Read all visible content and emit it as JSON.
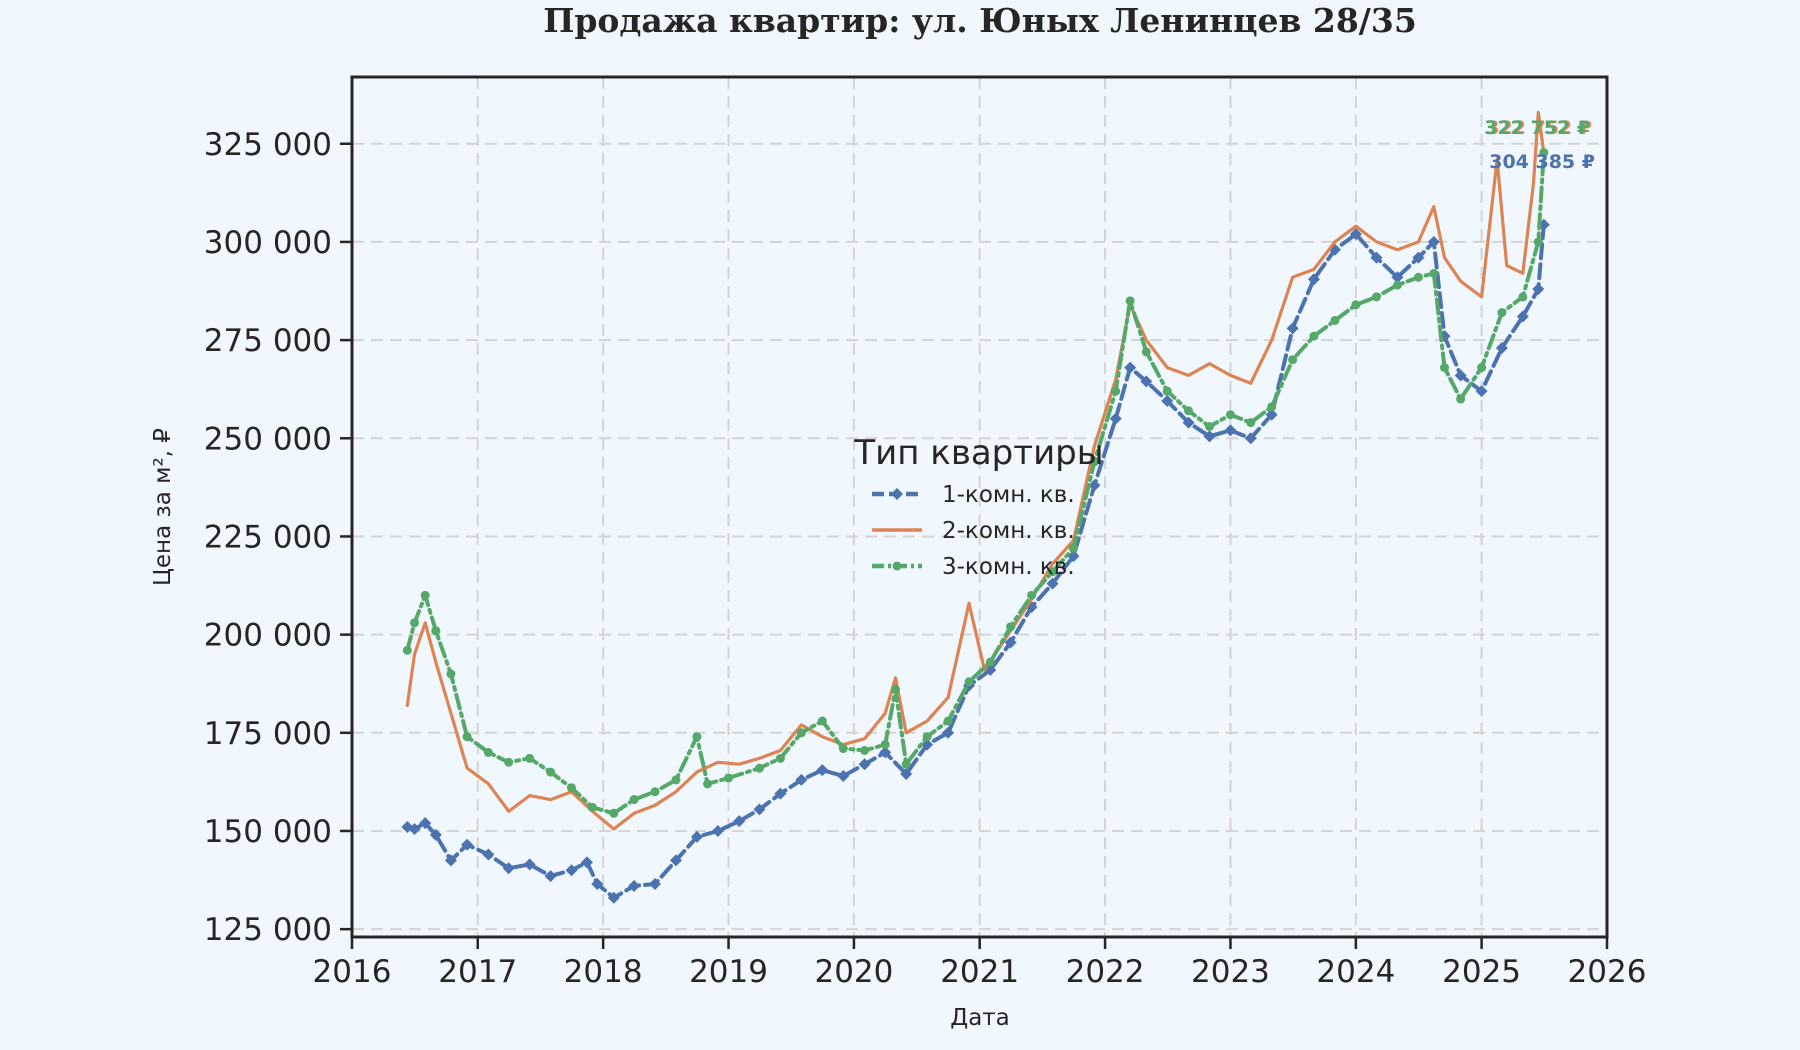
{
  "chart_data": {
    "type": "line",
    "title": "Продажа квартир: ул. Юных Ленинцев 28/35",
    "xlabel": "Дата",
    "ylabel": "Цена за м², ₽",
    "xlim": [
      "2016-01-01",
      "2026-01-01"
    ],
    "ylim": [
      123000,
      342000
    ],
    "x_ticks": [
      "2016",
      "2017",
      "2018",
      "2019",
      "2020",
      "2021",
      "2022",
      "2023",
      "2024",
      "2025",
      "2026"
    ],
    "y_ticks": [
      125000,
      150000,
      175000,
      200000,
      225000,
      250000,
      275000,
      300000,
      325000
    ],
    "y_tick_labels": [
      "125 000",
      "150 000",
      "175 000",
      "200 000",
      "225 000",
      "250 000",
      "275 000",
      "300 000",
      "325 000"
    ],
    "grid": true,
    "legend": {
      "title": "Тип квартиры",
      "placement": "center"
    },
    "series": [
      {
        "name": "1-комн. кв.",
        "color": "#4c72b0",
        "style": "dashed-diamond",
        "end_label": "304 385 ₽",
        "points": [
          [
            "2016-06-10",
            151000
          ],
          [
            "2016-07-01",
            150500
          ],
          [
            "2016-08-01",
            152000
          ],
          [
            "2016-09-01",
            149000
          ],
          [
            "2016-10-15",
            142500
          ],
          [
            "2016-12-01",
            146500
          ],
          [
            "2017-02-01",
            144000
          ],
          [
            "2017-04-01",
            140500
          ],
          [
            "2017-06-01",
            141500
          ],
          [
            "2017-08-01",
            138500
          ],
          [
            "2017-10-01",
            140000
          ],
          [
            "2017-11-15",
            142000
          ],
          [
            "2017-12-15",
            136500
          ],
          [
            "2018-02-01",
            133000
          ],
          [
            "2018-04-01",
            136000
          ],
          [
            "2018-06-01",
            136500
          ],
          [
            "2018-08-01",
            142500
          ],
          [
            "2018-10-01",
            148500
          ],
          [
            "2018-12-01",
            150000
          ],
          [
            "2019-02-01",
            152500
          ],
          [
            "2019-04-01",
            155500
          ],
          [
            "2019-06-01",
            159500
          ],
          [
            "2019-08-01",
            163000
          ],
          [
            "2019-10-01",
            165500
          ],
          [
            "2019-12-01",
            164000
          ],
          [
            "2020-02-01",
            167000
          ],
          [
            "2020-04-01",
            170000
          ],
          [
            "2020-06-01",
            164500
          ],
          [
            "2020-08-01",
            172000
          ],
          [
            "2020-10-01",
            175000
          ],
          [
            "2020-12-01",
            187000
          ],
          [
            "2021-02-01",
            191000
          ],
          [
            "2021-04-01",
            198000
          ],
          [
            "2021-06-01",
            207000
          ],
          [
            "2021-08-01",
            213000
          ],
          [
            "2021-10-01",
            220000
          ],
          [
            "2021-12-01",
            238000
          ],
          [
            "2022-02-01",
            255000
          ],
          [
            "2022-03-15",
            268000
          ],
          [
            "2022-05-01",
            264500
          ],
          [
            "2022-07-01",
            259500
          ],
          [
            "2022-09-01",
            254000
          ],
          [
            "2022-11-01",
            250500
          ],
          [
            "2023-01-01",
            252000
          ],
          [
            "2023-03-01",
            250000
          ],
          [
            "2023-05-01",
            256000
          ],
          [
            "2023-07-01",
            278000
          ],
          [
            "2023-09-01",
            290500
          ],
          [
            "2023-11-01",
            298000
          ],
          [
            "2024-01-01",
            302000
          ],
          [
            "2024-03-01",
            296000
          ],
          [
            "2024-05-01",
            291000
          ],
          [
            "2024-07-01",
            296000
          ],
          [
            "2024-08-15",
            300000
          ],
          [
            "2024-09-15",
            276000
          ],
          [
            "2024-11-01",
            266000
          ],
          [
            "2025-01-01",
            262000
          ],
          [
            "2025-03-01",
            273000
          ],
          [
            "2025-05-01",
            281000
          ],
          [
            "2025-06-15",
            288000
          ],
          [
            "2025-07-01",
            304385
          ]
        ]
      },
      {
        "name": "2-комн. кв.",
        "color": "#dd8452",
        "style": "solid",
        "end_label": "322 752 ₽",
        "points": [
          [
            "2016-06-10",
            182000
          ],
          [
            "2016-07-01",
            195000
          ],
          [
            "2016-08-01",
            203000
          ],
          [
            "2016-09-01",
            193000
          ],
          [
            "2016-10-15",
            180000
          ],
          [
            "2016-12-01",
            166000
          ],
          [
            "2017-02-01",
            162000
          ],
          [
            "2017-04-01",
            155000
          ],
          [
            "2017-06-01",
            159000
          ],
          [
            "2017-08-01",
            158000
          ],
          [
            "2017-10-01",
            160000
          ],
          [
            "2017-12-01",
            155000
          ],
          [
            "2018-02-01",
            150500
          ],
          [
            "2018-04-01",
            154500
          ],
          [
            "2018-06-01",
            156500
          ],
          [
            "2018-08-01",
            160000
          ],
          [
            "2018-10-01",
            165000
          ],
          [
            "2018-12-01",
            167500
          ],
          [
            "2019-02-01",
            167000
          ],
          [
            "2019-04-01",
            168500
          ],
          [
            "2019-06-01",
            170500
          ],
          [
            "2019-08-01",
            177000
          ],
          [
            "2019-10-01",
            174000
          ],
          [
            "2019-12-01",
            172000
          ],
          [
            "2020-02-01",
            173500
          ],
          [
            "2020-04-01",
            180000
          ],
          [
            "2020-05-01",
            189000
          ],
          [
            "2020-06-01",
            175000
          ],
          [
            "2020-08-01",
            178000
          ],
          [
            "2020-10-01",
            184000
          ],
          [
            "2020-12-01",
            208000
          ],
          [
            "2021-01-15",
            191000
          ],
          [
            "2021-04-01",
            201000
          ],
          [
            "2021-06-01",
            209000
          ],
          [
            "2021-08-01",
            218000
          ],
          [
            "2021-10-01",
            224000
          ],
          [
            "2021-12-01",
            248000
          ],
          [
            "2022-02-01",
            265000
          ],
          [
            "2022-03-15",
            284000
          ],
          [
            "2022-05-01",
            275000
          ],
          [
            "2022-07-01",
            268000
          ],
          [
            "2022-09-01",
            266000
          ],
          [
            "2022-11-01",
            269000
          ],
          [
            "2023-01-01",
            266000
          ],
          [
            "2023-03-01",
            264000
          ],
          [
            "2023-05-01",
            275000
          ],
          [
            "2023-07-01",
            291000
          ],
          [
            "2023-09-01",
            293000
          ],
          [
            "2023-11-01",
            300000
          ],
          [
            "2024-01-01",
            304000
          ],
          [
            "2024-03-01",
            300000
          ],
          [
            "2024-05-01",
            298000
          ],
          [
            "2024-07-01",
            300000
          ],
          [
            "2024-08-15",
            309000
          ],
          [
            "2024-09-15",
            296000
          ],
          [
            "2024-11-01",
            290000
          ],
          [
            "2025-01-01",
            286000
          ],
          [
            "2025-02-15",
            321000
          ],
          [
            "2025-03-15",
            294000
          ],
          [
            "2025-05-01",
            292000
          ],
          [
            "2025-06-01",
            315000
          ],
          [
            "2025-06-15",
            333000
          ],
          [
            "2025-07-01",
            322752
          ]
        ]
      },
      {
        "name": "3-комн. кв.",
        "color": "#55a868",
        "style": "dashdot-dot",
        "end_label": "322 752 ₽",
        "points": [
          [
            "2016-06-10",
            196000
          ],
          [
            "2016-07-01",
            203000
          ],
          [
            "2016-08-01",
            210000
          ],
          [
            "2016-09-01",
            201000
          ],
          [
            "2016-10-15",
            190000
          ],
          [
            "2016-12-01",
            174000
          ],
          [
            "2017-02-01",
            170000
          ],
          [
            "2017-04-01",
            167500
          ],
          [
            "2017-06-01",
            168500
          ],
          [
            "2017-08-01",
            165000
          ],
          [
            "2017-10-01",
            161000
          ],
          [
            "2017-12-01",
            156000
          ],
          [
            "2018-02-01",
            154500
          ],
          [
            "2018-04-01",
            158000
          ],
          [
            "2018-06-01",
            160000
          ],
          [
            "2018-08-01",
            163000
          ],
          [
            "2018-10-01",
            174000
          ],
          [
            "2018-11-01",
            162000
          ],
          [
            "2019-01-01",
            163500
          ],
          [
            "2019-04-01",
            166000
          ],
          [
            "2019-06-01",
            168500
          ],
          [
            "2019-08-01",
            175000
          ],
          [
            "2019-10-01",
            178000
          ],
          [
            "2019-12-01",
            171000
          ],
          [
            "2020-02-01",
            170500
          ],
          [
            "2020-04-01",
            172000
          ],
          [
            "2020-05-01",
            186000
          ],
          [
            "2020-06-01",
            167000
          ],
          [
            "2020-08-01",
            174000
          ],
          [
            "2020-10-01",
            178000
          ],
          [
            "2020-12-01",
            188000
          ],
          [
            "2021-02-01",
            193000
          ],
          [
            "2021-04-01",
            202000
          ],
          [
            "2021-06-01",
            210000
          ],
          [
            "2021-08-01",
            216000
          ],
          [
            "2021-10-01",
            222000
          ],
          [
            "2021-12-01",
            244000
          ],
          [
            "2022-02-01",
            262000
          ],
          [
            "2022-03-15",
            285000
          ],
          [
            "2022-05-01",
            272000
          ],
          [
            "2022-07-01",
            262000
          ],
          [
            "2022-09-01",
            257000
          ],
          [
            "2022-11-01",
            253000
          ],
          [
            "2023-01-01",
            256000
          ],
          [
            "2023-03-01",
            254000
          ],
          [
            "2023-05-01",
            258000
          ],
          [
            "2023-07-01",
            270000
          ],
          [
            "2023-09-01",
            276000
          ],
          [
            "2023-11-01",
            280000
          ],
          [
            "2024-01-01",
            284000
          ],
          [
            "2024-03-01",
            286000
          ],
          [
            "2024-05-01",
            289000
          ],
          [
            "2024-07-01",
            291000
          ],
          [
            "2024-08-15",
            292000
          ],
          [
            "2024-09-15",
            268000
          ],
          [
            "2024-11-01",
            260000
          ],
          [
            "2025-01-01",
            268000
          ],
          [
            "2025-03-01",
            282000
          ],
          [
            "2025-05-01",
            286000
          ],
          [
            "2025-06-15",
            300000
          ],
          [
            "2025-07-01",
            322752
          ]
        ]
      }
    ]
  }
}
